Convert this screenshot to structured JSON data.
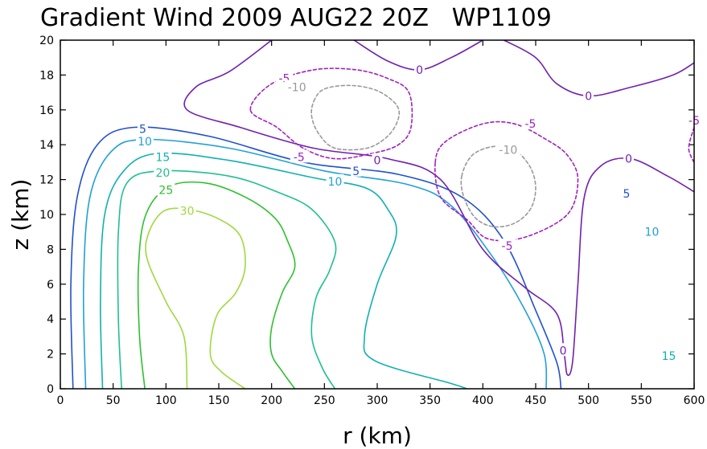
{
  "chart_data": {
    "type": "contour",
    "title": "Gradient Wind 2009 AUG22 20Z   WP1109",
    "xlabel": "r (km)",
    "ylabel": "z (km)",
    "xlim": [
      0,
      600
    ],
    "ylim": [
      0,
      20
    ],
    "xticks": [
      0,
      50,
      100,
      150,
      200,
      250,
      300,
      350,
      400,
      450,
      500,
      550,
      600
    ],
    "yticks": [
      0,
      2,
      4,
      6,
      8,
      10,
      12,
      14,
      16,
      18,
      20
    ],
    "grid": false,
    "contours": [
      {
        "level": "30",
        "color": "#a0d840",
        "dashed": false,
        "points": [
          [
            120,
            0
          ],
          [
            117,
            3
          ],
          [
            100,
            5
          ],
          [
            82,
            7.5
          ],
          [
            84,
            9
          ],
          [
            98,
            10.2
          ],
          [
            120,
            10.3
          ],
          [
            148,
            9.8
          ],
          [
            170,
            8.8
          ],
          [
            175,
            7
          ],
          [
            166,
            5.5
          ],
          [
            148,
            4.2
          ],
          [
            142,
            2
          ],
          [
            152,
            1
          ],
          [
            175,
            0
          ]
        ]
      },
      {
        "level": "25",
        "color": "#2ec02e",
        "dashed": false,
        "points": [
          [
            80,
            0
          ],
          [
            75,
            3
          ],
          [
            74,
            7
          ],
          [
            81,
            10
          ],
          [
            103,
            11.6
          ],
          [
            138,
            11.8
          ],
          [
            175,
            11
          ],
          [
            203,
            9.8
          ],
          [
            215,
            8.5
          ],
          [
            222,
            7
          ],
          [
            210,
            5.5
          ],
          [
            200,
            3.5
          ],
          [
            200,
            2
          ],
          [
            210,
            1
          ],
          [
            222,
            0
          ]
        ]
      },
      {
        "level": "20",
        "color": "#20c090",
        "dashed": false,
        "points": [
          [
            58,
            0
          ],
          [
            55,
            4
          ],
          [
            55,
            9
          ],
          [
            63,
            11.8
          ],
          [
            95,
            12.5
          ],
          [
            160,
            12.2
          ],
          [
            205,
            11.3
          ],
          [
            238,
            10.3
          ],
          [
            260,
            8.4
          ],
          [
            255,
            6.8
          ],
          [
            242,
            5.2
          ],
          [
            238,
            3
          ],
          [
            248,
            1.2
          ],
          [
            260,
            0
          ]
        ]
      },
      {
        "level": "15",
        "color": "#10b0b0",
        "dashed": false,
        "points": [
          [
            40,
            0
          ],
          [
            38,
            5
          ],
          [
            42,
            10
          ],
          [
            60,
            12.5
          ],
          [
            92,
            13.5
          ],
          [
            160,
            13.1
          ],
          [
            240,
            12.1
          ],
          [
            290,
            11.5
          ],
          [
            310,
            10.3
          ],
          [
            318,
            8.8
          ],
          [
            300,
            6
          ],
          [
            288,
            3
          ],
          [
            298,
            1.6
          ],
          [
            370,
            0.3
          ],
          [
            385,
            0
          ]
        ]
      },
      {
        "level": "10",
        "color": "#20a0d8",
        "dashed": false,
        "points": [
          [
            24,
            0
          ],
          [
            22,
            6
          ],
          [
            28,
            11
          ],
          [
            48,
            13.6
          ],
          [
            80,
            14.3
          ],
          [
            160,
            13.8
          ],
          [
            250,
            12.5
          ],
          [
            330,
            11.7
          ],
          [
            370,
            10.5
          ],
          [
            410,
            7.5
          ],
          [
            440,
            4.5
          ],
          [
            458,
            2
          ],
          [
            460,
            0
          ]
        ]
      },
      {
        "level": "5",
        "color": "#2050d0",
        "dashed": false,
        "points": [
          [
            12,
            0
          ],
          [
            10,
            6
          ],
          [
            16,
            11
          ],
          [
            35,
            14
          ],
          [
            70,
            15
          ],
          [
            140,
            14.5
          ],
          [
            230,
            13
          ],
          [
            320,
            12.3
          ],
          [
            380,
            11
          ],
          [
            420,
            8.5
          ],
          [
            450,
            4.5
          ],
          [
            470,
            1.5
          ],
          [
            474,
            0
          ]
        ]
      },
      {
        "level": "0",
        "color": "#7020b0",
        "dashed": false,
        "points": [
          [
            200,
            20
          ],
          [
            160,
            18.2
          ],
          [
            128,
            17.3
          ],
          [
            120,
            16
          ],
          [
            170,
            15
          ],
          [
            240,
            13.8
          ],
          [
            310,
            13.2
          ],
          [
            360,
            12
          ],
          [
            400,
            8
          ],
          [
            440,
            5.8
          ],
          [
            470,
            4.3
          ],
          [
            477,
            2
          ],
          [
            480,
            0.8
          ],
          [
            485,
            1.6
          ],
          [
            490,
            6
          ],
          [
            496,
            11
          ],
          [
            512,
            12.8
          ],
          [
            540,
            13.2
          ],
          [
            575,
            12.2
          ],
          [
            600,
            11.3
          ]
        ]
      },
      {
        "level": "0",
        "color": "#7020b0",
        "dashed": false,
        "points": [
          [
            278,
            20
          ],
          [
            310,
            18.8
          ],
          [
            340,
            18.3
          ],
          [
            370,
            19
          ],
          [
            400,
            20
          ]
        ]
      },
      {
        "level": "0",
        "color": "#7020b0",
        "dashed": false,
        "points": [
          [
            420,
            20
          ],
          [
            450,
            19
          ],
          [
            470,
            17.5
          ],
          [
            500,
            16.8
          ],
          [
            540,
            17.3
          ],
          [
            580,
            18
          ],
          [
            600,
            18.7
          ]
        ]
      },
      {
        "level": "-5",
        "color": "#a020c0",
        "dashed": true,
        "closed": true,
        "points": [
          [
            180,
            16
          ],
          [
            200,
            17.5
          ],
          [
            240,
            18.3
          ],
          [
            280,
            18.3
          ],
          [
            310,
            17.8
          ],
          [
            330,
            17
          ],
          [
            332,
            15
          ],
          [
            320,
            14
          ],
          [
            295,
            13.5
          ],
          [
            260,
            13.2
          ],
          [
            230,
            13.8
          ],
          [
            205,
            15
          ]
        ]
      },
      {
        "level": "-5",
        "color": "#a020c0",
        "dashed": true,
        "closed": true,
        "points": [
          [
            355,
            13
          ],
          [
            365,
            14.2
          ],
          [
            400,
            15.2
          ],
          [
            430,
            15.2
          ],
          [
            460,
            14.3
          ],
          [
            480,
            13.4
          ],
          [
            490,
            12
          ],
          [
            480,
            10
          ],
          [
            440,
            8.7
          ],
          [
            405,
            8.6
          ],
          [
            385,
            9.7
          ],
          [
            360,
            11
          ]
        ]
      },
      {
        "level": "-5",
        "color": "#a020c0",
        "dashed": true,
        "points": [
          [
            600,
            15
          ],
          [
            596,
            14.2
          ],
          [
            595,
            13.7
          ],
          [
            598,
            13.2
          ],
          [
            600,
            13
          ]
        ]
      },
      {
        "level": "-10",
        "color": "#999999",
        "dashed": true,
        "closed": true,
        "points": [
          [
            240,
            16.5
          ],
          [
            250,
            17.2
          ],
          [
            275,
            17.4
          ],
          [
            300,
            17.1
          ],
          [
            318,
            16.3
          ],
          [
            320,
            15.5
          ],
          [
            310,
            14.5
          ],
          [
            290,
            13.8
          ],
          [
            260,
            13.8
          ],
          [
            245,
            14.6
          ],
          [
            238,
            15.6
          ]
        ]
      },
      {
        "level": "-10",
        "color": "#999999",
        "dashed": true,
        "closed": true,
        "points": [
          [
            380,
            12.2
          ],
          [
            390,
            13.4
          ],
          [
            410,
            13.9
          ],
          [
            430,
            13.7
          ],
          [
            445,
            12.7
          ],
          [
            450,
            11.5
          ],
          [
            445,
            10.3
          ],
          [
            430,
            9.5
          ],
          [
            410,
            9.3
          ],
          [
            393,
            9.8
          ],
          [
            382,
            11
          ]
        ]
      }
    ],
    "labels": [
      {
        "text": "30",
        "x": 120,
        "y": 10.2,
        "color": "#a0d840"
      },
      {
        "text": "25",
        "x": 100,
        "y": 11.4,
        "color": "#2ec02e"
      },
      {
        "text": "20",
        "x": 97,
        "y": 12.4,
        "color": "#20c090"
      },
      {
        "text": "15",
        "x": 97,
        "y": 13.3,
        "color": "#10b0b0"
      },
      {
        "text": "10",
        "x": 80,
        "y": 14.2,
        "color": "#20a0d8"
      },
      {
        "text": "5",
        "x": 78,
        "y": 14.9,
        "color": "#2050d0"
      },
      {
        "text": "10",
        "x": 260,
        "y": 11.9,
        "color": "#20a0d8"
      },
      {
        "text": "5",
        "x": 280,
        "y": 12.5,
        "color": "#2050d0"
      },
      {
        "text": "0",
        "x": 300,
        "y": 13.1,
        "color": "#7020b0"
      },
      {
        "text": "-5",
        "x": 226,
        "y": 13.3,
        "color": "#a020c0"
      },
      {
        "text": "-5",
        "x": 212,
        "y": 17.8,
        "color": "#a020c0"
      },
      {
        "text": "-10",
        "x": 224,
        "y": 17.3,
        "color": "#999999"
      },
      {
        "text": "0",
        "x": 340,
        "y": 18.3,
        "color": "#7020b0"
      },
      {
        "text": "0",
        "x": 500,
        "y": 16.8,
        "color": "#7020b0"
      },
      {
        "text": "-5",
        "x": 445,
        "y": 15.2,
        "color": "#a020c0"
      },
      {
        "text": "-10",
        "x": 424,
        "y": 13.7,
        "color": "#999999"
      },
      {
        "text": "-5",
        "x": 423,
        "y": 8.2,
        "color": "#a020c0"
      },
      {
        "text": "0",
        "x": 476,
        "y": 2.2,
        "color": "#7020b0"
      },
      {
        "text": "0",
        "x": 538,
        "y": 13.2,
        "color": "#7020b0"
      },
      {
        "text": "5",
        "x": 536,
        "y": 11.2,
        "color": "#2050d0"
      },
      {
        "text": "10",
        "x": 560,
        "y": 9.0,
        "color": "#20a0d8"
      },
      {
        "text": "15",
        "x": 576,
        "y": 1.9,
        "color": "#10b0b0"
      },
      {
        "text": "-5",
        "x": 600,
        "y": 15.4,
        "color": "#a020c0"
      }
    ]
  }
}
